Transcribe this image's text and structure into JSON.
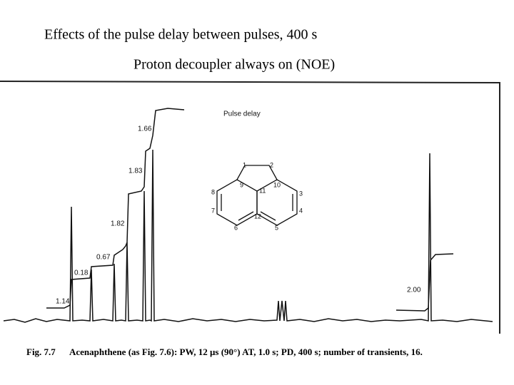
{
  "title": "Effects of the pulse delay between pulses, 400 s",
  "subtitle": "Proton decoupler always on (NOE)",
  "figure": {
    "label": "Pulse delay",
    "integrals": [
      "1.14",
      "0.18",
      "0.67",
      "1.82",
      "1.83",
      "1.66",
      "2.00"
    ],
    "atoms": [
      "1",
      "2",
      "9",
      "10",
      "11",
      "8",
      "3",
      "7",
      "4",
      "6",
      "12",
      "5"
    ],
    "caption": {
      "number": "Fig. 7.7",
      "text": "Acenaphthene (as Fig. 7.6): PW, 12 μs (90°) AT, 1.0 s; PD, 400 s; number of transients, 16."
    }
  }
}
